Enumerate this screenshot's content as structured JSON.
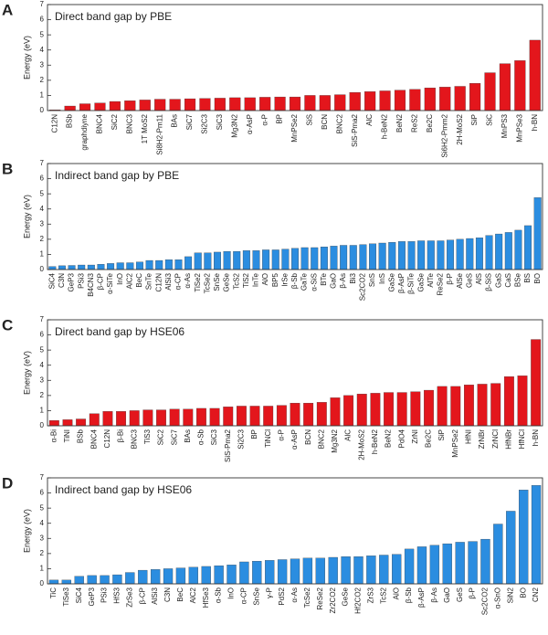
{
  "chart_data": [
    {
      "type": "bar",
      "panel": "A",
      "title": "Direct band gap by PBE",
      "y_label": "Energy (eV)",
      "color": "#e3161c",
      "categories": [
        "C12N",
        "BSb",
        "graphdiyne",
        "BNC4",
        "SiC2",
        "BNC3",
        "1T MoS2",
        "Si8H2-Pm11",
        "BAs",
        "SiC7",
        "Si2C3",
        "SiC3",
        "Mg3N2",
        "α-AsP",
        "α-P",
        "BP",
        "MnPSe2",
        "SiS",
        "BCN",
        "BNC2",
        "SiS-Pma2",
        "AlC",
        "h-BeN2",
        "BeN2",
        "ReS2",
        "Be2C",
        "Si6H2-Pmm2",
        "2H-MoS2",
        "SiP",
        "SiC",
        "MnPS3",
        "MnPSe3",
        "h-BN"
      ],
      "values": [
        0.05,
        0.3,
        0.45,
        0.5,
        0.6,
        0.65,
        0.7,
        0.75,
        0.75,
        0.78,
        0.8,
        0.82,
        0.85,
        0.85,
        0.88,
        0.9,
        0.9,
        1.0,
        1.0,
        1.05,
        1.2,
        1.25,
        1.3,
        1.35,
        1.4,
        1.5,
        1.55,
        1.6,
        1.8,
        2.5,
        3.1,
        3.3,
        4.65
      ],
      "ylim": [
        0,
        7
      ],
      "yticks": [
        0,
        1,
        2,
        3,
        4,
        5,
        6,
        7
      ]
    },
    {
      "type": "bar",
      "panel": "B",
      "title": "Indirect band gap by PBE",
      "y_label": "Energy (eV)",
      "color": "#2b8de0",
      "categories": [
        "SiC4",
        "C3N",
        "GeP3",
        "PSi3",
        "B4CN3",
        "β-CP",
        "α-SiTe",
        "InO",
        "AlC2",
        "BeC",
        "SnTe",
        "C12N",
        "AlSi3",
        "α-CP",
        "α-As",
        "TiSe2",
        "TcSe2",
        "SnSe",
        "GeSe",
        "TcS2",
        "TiS2",
        "InTe",
        "AlO",
        "BP5",
        "IrSe",
        "β-Sb",
        "GaTe",
        "α-SiS",
        "BTe",
        "GaO",
        "β-As",
        "Bi3",
        "Sc2CO2",
        "SnS",
        "InS",
        "GaSe",
        "β-AsP",
        "β-SiTe",
        "GaSe",
        "AlTe",
        "ReSe2",
        "β-P",
        "AlSe",
        "GeS",
        "AlS",
        "β-SiS",
        "GaS",
        "CaS",
        "BSe",
        "BS",
        "BO"
      ],
      "values": [
        0.2,
        0.25,
        0.27,
        0.3,
        0.3,
        0.35,
        0.4,
        0.45,
        0.45,
        0.5,
        0.6,
        0.6,
        0.65,
        0.65,
        0.85,
        1.1,
        1.1,
        1.15,
        1.2,
        1.2,
        1.25,
        1.25,
        1.3,
        1.3,
        1.35,
        1.4,
        1.45,
        1.45,
        1.5,
        1.55,
        1.6,
        1.6,
        1.65,
        1.7,
        1.75,
        1.8,
        1.85,
        1.85,
        1.9,
        1.9,
        1.9,
        1.95,
        2.0,
        2.05,
        2.1,
        2.25,
        2.35,
        2.45,
        2.6,
        2.9,
        4.75
      ],
      "ylim": [
        0,
        7
      ],
      "yticks": [
        0,
        1,
        2,
        3,
        4,
        5,
        6,
        7
      ]
    },
    {
      "type": "bar",
      "panel": "C",
      "title": "Direct band gap by HSE06",
      "y_label": "Energy (eV)",
      "color": "#e3161c",
      "categories": [
        "α-Bi",
        "TiNI",
        "BSb",
        "BNC4",
        "C12N",
        "β-Bi",
        "BNC3",
        "TiS3",
        "SiC2",
        "SiC7",
        "BAs",
        "α-Sb",
        "SiC3",
        "SiS-Pma2",
        "Si2C3",
        "BP",
        "TiNCl",
        "α-P",
        "α-AsP",
        "BCN",
        "BNC2",
        "Mg3N2",
        "AlC",
        "2H-MoS2",
        "h-BeN2",
        "BeN2",
        "PdO4",
        "ZrNI",
        "Be2C",
        "SiP",
        "MnPSe2",
        "HfNI",
        "ZrNBr",
        "ZrNCl",
        "HfNBr",
        "HfNCl",
        "h-BN"
      ],
      "values": [
        0.35,
        0.4,
        0.45,
        0.8,
        0.95,
        0.95,
        1.0,
        1.05,
        1.05,
        1.1,
        1.1,
        1.15,
        1.15,
        1.25,
        1.3,
        1.3,
        1.3,
        1.35,
        1.5,
        1.5,
        1.55,
        1.85,
        2.0,
        2.1,
        2.15,
        2.2,
        2.2,
        2.25,
        2.35,
        2.6,
        2.6,
        2.7,
        2.75,
        2.8,
        3.25,
        3.3,
        5.7
      ],
      "ylim": [
        0,
        7
      ],
      "yticks": [
        0,
        1,
        2,
        3,
        4,
        5,
        6,
        7
      ]
    },
    {
      "type": "bar",
      "panel": "D",
      "title": "Indirect band gap by HSE06",
      "y_label": "Energy (eV)",
      "color": "#2b8de0",
      "categories": [
        "TiC",
        "TiSe3",
        "SiC4",
        "GeP3",
        "PSi3",
        "HfS3",
        "ZrSe3",
        "β-CP",
        "AlSi3",
        "C3N",
        "BeC",
        "AlC2",
        "HfSe3",
        "α-Sb",
        "InO",
        "α-CP",
        "SnSe",
        "γ-P",
        "PdS2",
        "α-As",
        "TcSe2",
        "ReSe2",
        "Zr2CO2",
        "GeSe",
        "Hf2CO2",
        "ZrS3",
        "TcS2",
        "AlO",
        "β-Sb",
        "β-AsP",
        "β-As",
        "GaO",
        "GeS",
        "β-P",
        "Sc2CO2",
        "α-SnO",
        "SiN2",
        "BO",
        "CN2"
      ],
      "values": [
        0.25,
        0.25,
        0.5,
        0.55,
        0.55,
        0.6,
        0.75,
        0.9,
        0.95,
        1.0,
        1.05,
        1.1,
        1.15,
        1.2,
        1.25,
        1.45,
        1.5,
        1.55,
        1.6,
        1.65,
        1.7,
        1.7,
        1.75,
        1.8,
        1.8,
        1.85,
        1.9,
        1.95,
        2.3,
        2.45,
        2.55,
        2.65,
        2.75,
        2.8,
        2.95,
        3.95,
        4.8,
        6.2,
        6.5
      ],
      "ylim": [
        0,
        7
      ],
      "yticks": [
        0,
        1,
        2,
        3,
        4,
        5,
        6,
        7
      ]
    }
  ]
}
